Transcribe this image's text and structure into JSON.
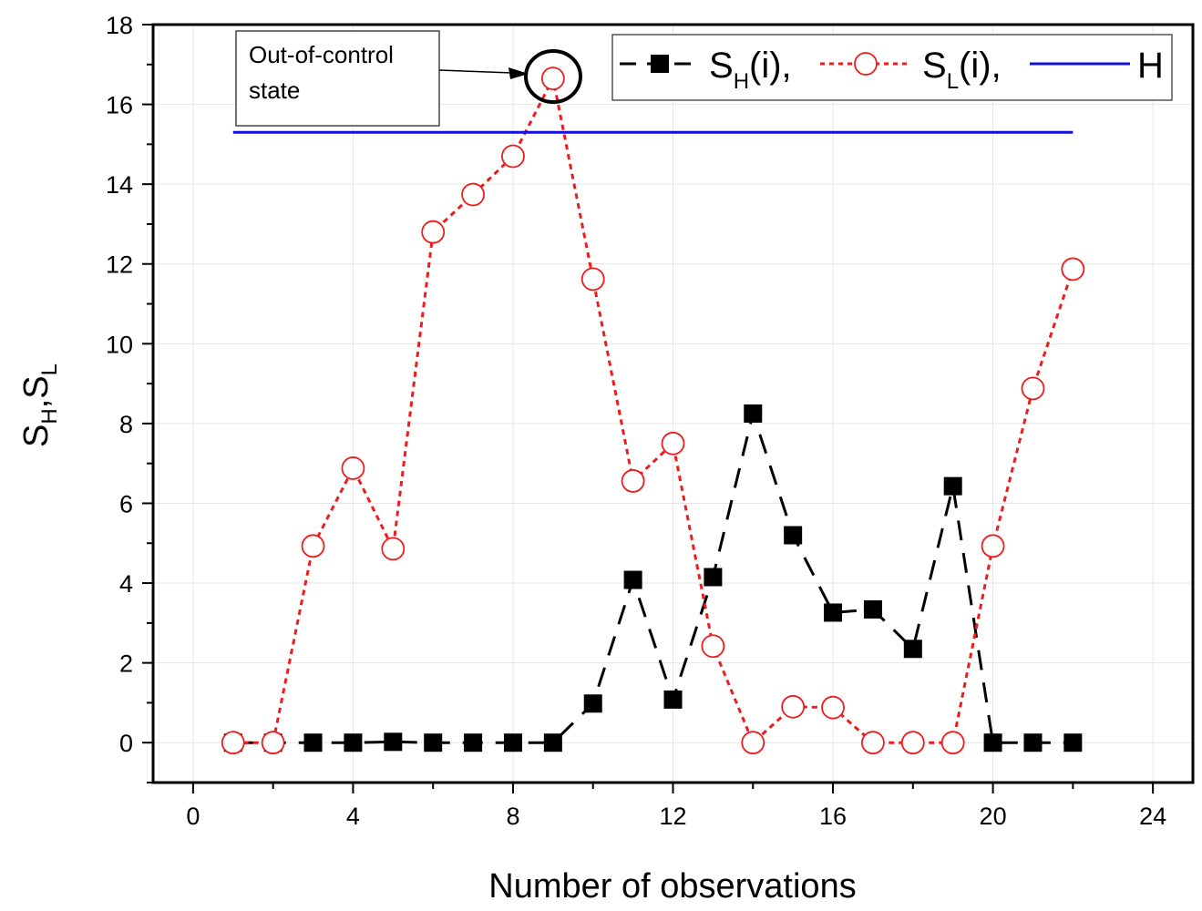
{
  "chart_data": {
    "type": "line",
    "xlabel": "Number of observations",
    "ylabel_parts": [
      "S",
      "H",
      ",S",
      "L"
    ],
    "xlim": [
      -1,
      25
    ],
    "ylim": [
      -1,
      18
    ],
    "xticks": [
      0,
      4,
      8,
      12,
      16,
      20,
      24
    ],
    "yticks": [
      0,
      2,
      4,
      6,
      8,
      10,
      12,
      14,
      16,
      18
    ],
    "grid": true,
    "legend_position": "top-right",
    "series": [
      {
        "name": "SH(i)",
        "legend_main": "S",
        "legend_sub": "H",
        "legend_tail": "(i),",
        "color": "#000000",
        "marker": "filled-square",
        "line_style": "long-dash",
        "x": [
          1,
          2,
          3,
          4,
          5,
          6,
          7,
          8,
          9,
          10,
          11,
          12,
          13,
          14,
          15,
          16,
          17,
          18,
          19,
          20,
          21,
          22
        ],
        "values": [
          0,
          0,
          0,
          0,
          0.02,
          0,
          0,
          0,
          0,
          0.98,
          4.08,
          1.08,
          4.15,
          8.25,
          5.2,
          3.26,
          3.34,
          2.35,
          6.43,
          0,
          0,
          0
        ]
      },
      {
        "name": "SL(i)",
        "legend_main": "S",
        "legend_sub": "L",
        "legend_tail": "(i),",
        "color": "#ee1c1c",
        "marker": "open-circle",
        "line_style": "dotted",
        "x": [
          1,
          2,
          3,
          4,
          5,
          6,
          7,
          8,
          9,
          10,
          11,
          12,
          13,
          14,
          15,
          16,
          17,
          18,
          19,
          20,
          21,
          22
        ],
        "values": [
          0,
          0,
          4.93,
          6.88,
          4.86,
          12.8,
          13.74,
          14.7,
          16.65,
          11.62,
          6.56,
          7.5,
          2.42,
          0,
          0.9,
          0.88,
          0,
          0,
          0,
          4.93,
          8.88,
          11.87
        ]
      },
      {
        "name": "H",
        "legend_main": "H",
        "color": "#1010e0",
        "marker": "none",
        "line_style": "solid",
        "x": [
          1,
          22
        ],
        "values": [
          15.3,
          15.3
        ]
      }
    ],
    "annotations": [
      {
        "text_lines": [
          "Out-of-control",
          "state"
        ],
        "target_x": 9,
        "target_y": 16.65
      }
    ]
  }
}
